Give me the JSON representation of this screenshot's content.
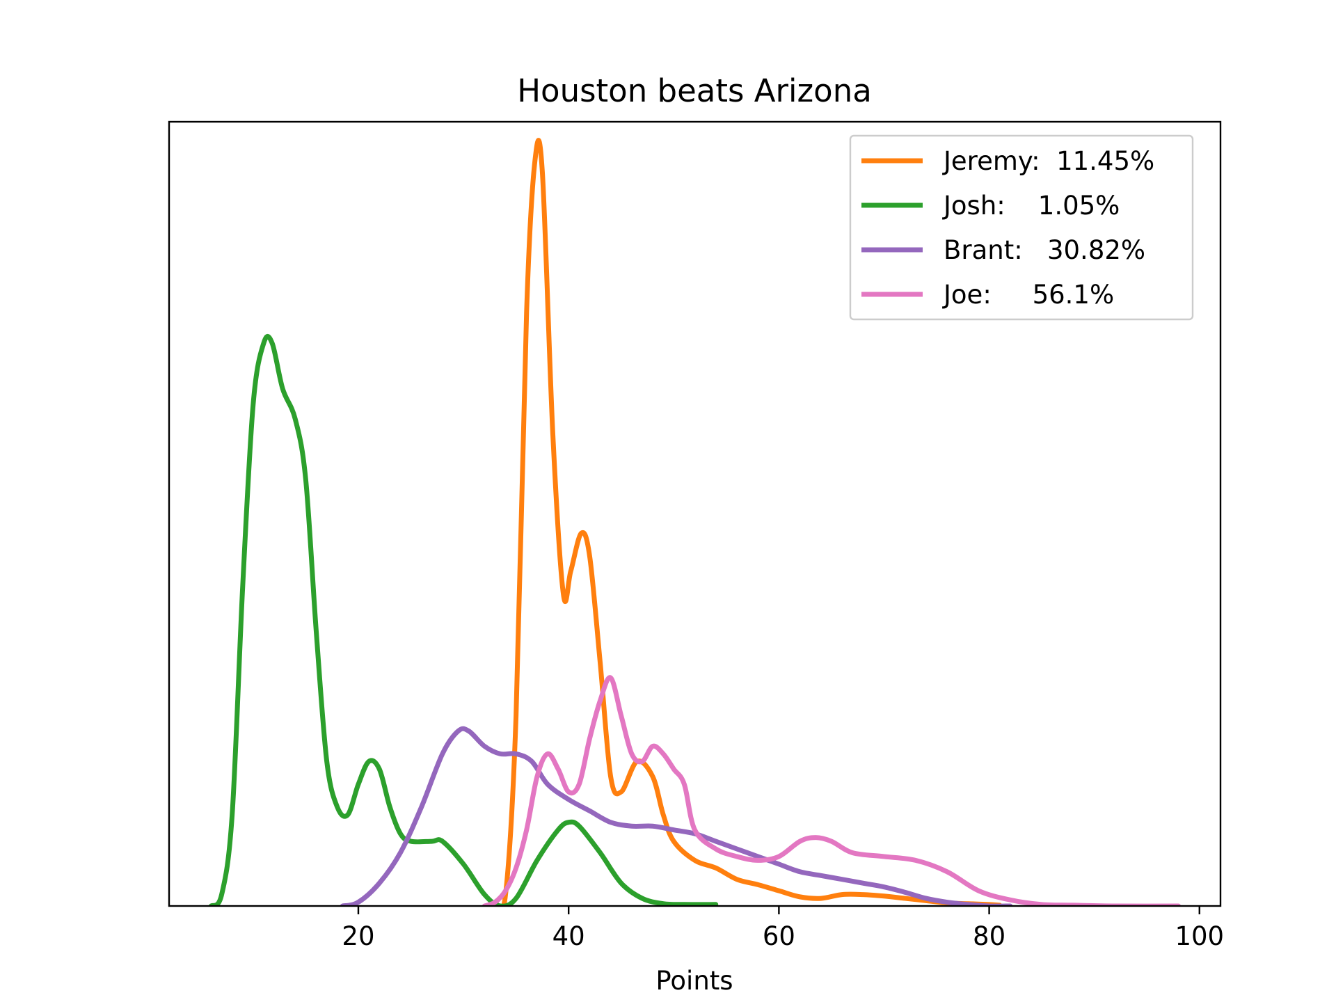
{
  "chart_data": {
    "type": "line",
    "title": "Houston beats Arizona",
    "xlabel": "Points",
    "ylabel": "",
    "xlim": [
      2,
      102
    ],
    "ylim": [
      0,
      1
    ],
    "xticks": [
      20,
      40,
      60,
      80,
      100
    ],
    "yticks_visible": false,
    "grid": false,
    "legend_position": "top-right",
    "series": [
      {
        "name": "Jeremy:  11.45%",
        "color": "#ff7f0e",
        "points": [
          [
            33,
            0.005
          ],
          [
            34,
            0.015
          ],
          [
            35,
            0.25
          ],
          [
            36,
            0.78
          ],
          [
            36.8,
            0.98
          ],
          [
            37.5,
            0.965
          ],
          [
            38.5,
            0.62
          ],
          [
            39.5,
            0.41
          ],
          [
            40.2,
            0.44
          ],
          [
            41.2,
            0.49
          ],
          [
            42,
            0.46
          ],
          [
            43,
            0.32
          ],
          [
            44,
            0.17
          ],
          [
            45,
            0.15
          ],
          [
            46.5,
            0.19
          ],
          [
            48,
            0.17
          ],
          [
            49,
            0.12
          ],
          [
            50,
            0.085
          ],
          [
            52,
            0.06
          ],
          [
            54,
            0.05
          ],
          [
            56,
            0.035
          ],
          [
            58,
            0.028
          ],
          [
            60,
            0.02
          ],
          [
            62,
            0.012
          ],
          [
            64,
            0.01
          ],
          [
            66,
            0.015
          ],
          [
            68,
            0.015
          ],
          [
            70,
            0.013
          ],
          [
            72,
            0.01
          ],
          [
            74,
            0.007
          ],
          [
            76,
            0.004
          ],
          [
            78,
            0.003
          ],
          [
            80,
            0.002
          ],
          [
            81,
            0.001
          ]
        ]
      },
      {
        "name": "Josh:    1.05%",
        "color": "#2ca02c",
        "points": [
          [
            6,
            0.0
          ],
          [
            7,
            0.015
          ],
          [
            8,
            0.12
          ],
          [
            9,
            0.42
          ],
          [
            10,
            0.66
          ],
          [
            11,
            0.74
          ],
          [
            11.8,
            0.74
          ],
          [
            12.8,
            0.68
          ],
          [
            14,
            0.64
          ],
          [
            15,
            0.56
          ],
          [
            16,
            0.36
          ],
          [
            17,
            0.19
          ],
          [
            18,
            0.13
          ],
          [
            19,
            0.12
          ],
          [
            20,
            0.16
          ],
          [
            21,
            0.19
          ],
          [
            22,
            0.18
          ],
          [
            23,
            0.13
          ],
          [
            24,
            0.095
          ],
          [
            25,
            0.085
          ],
          [
            27,
            0.085
          ],
          [
            28,
            0.085
          ],
          [
            30,
            0.055
          ],
          [
            32,
            0.015
          ],
          [
            33.5,
            0.0
          ],
          [
            35,
            0.01
          ],
          [
            37,
            0.06
          ],
          [
            39,
            0.1
          ],
          [
            40,
            0.11
          ],
          [
            41,
            0.105
          ],
          [
            43,
            0.07
          ],
          [
            45,
            0.03
          ],
          [
            47,
            0.01
          ],
          [
            49,
            0.003
          ],
          [
            51,
            0.002
          ],
          [
            54,
            0.002
          ]
        ]
      },
      {
        "name": "Brant:   30.82%",
        "color": "#9467bd",
        "points": [
          [
            18.5,
            0.0
          ],
          [
            20,
            0.005
          ],
          [
            22,
            0.03
          ],
          [
            24,
            0.07
          ],
          [
            26,
            0.13
          ],
          [
            28,
            0.2
          ],
          [
            29.5,
            0.23
          ],
          [
            30.5,
            0.23
          ],
          [
            32,
            0.21
          ],
          [
            33.5,
            0.2
          ],
          [
            35,
            0.2
          ],
          [
            36.5,
            0.19
          ],
          [
            38,
            0.16
          ],
          [
            40,
            0.14
          ],
          [
            42,
            0.125
          ],
          [
            44,
            0.11
          ],
          [
            46,
            0.105
          ],
          [
            48,
            0.105
          ],
          [
            50,
            0.1
          ],
          [
            52,
            0.095
          ],
          [
            54,
            0.085
          ],
          [
            56,
            0.075
          ],
          [
            58,
            0.065
          ],
          [
            60,
            0.055
          ],
          [
            62,
            0.045
          ],
          [
            64,
            0.04
          ],
          [
            66,
            0.035
          ],
          [
            68,
            0.03
          ],
          [
            70,
            0.025
          ],
          [
            72,
            0.018
          ],
          [
            74,
            0.01
          ],
          [
            76,
            0.005
          ],
          [
            78,
            0.002
          ],
          [
            80,
            0.0
          ],
          [
            82,
            0.0
          ]
        ]
      },
      {
        "name": "Joe:     56.1%",
        "color": "#e377c2",
        "points": [
          [
            32,
            0.0
          ],
          [
            33,
            0.005
          ],
          [
            34,
            0.02
          ],
          [
            35,
            0.05
          ],
          [
            36,
            0.1
          ],
          [
            37,
            0.17
          ],
          [
            38,
            0.2
          ],
          [
            39,
            0.18
          ],
          [
            40,
            0.15
          ],
          [
            41,
            0.16
          ],
          [
            42,
            0.22
          ],
          [
            43,
            0.27
          ],
          [
            44,
            0.3
          ],
          [
            45,
            0.25
          ],
          [
            46,
            0.2
          ],
          [
            47,
            0.19
          ],
          [
            48,
            0.21
          ],
          [
            49,
            0.2
          ],
          [
            50,
            0.18
          ],
          [
            51,
            0.16
          ],
          [
            52,
            0.1
          ],
          [
            54,
            0.075
          ],
          [
            56,
            0.065
          ],
          [
            58,
            0.06
          ],
          [
            60,
            0.065
          ],
          [
            62,
            0.085
          ],
          [
            63.5,
            0.09
          ],
          [
            65,
            0.085
          ],
          [
            67,
            0.07
          ],
          [
            70,
            0.065
          ],
          [
            73,
            0.06
          ],
          [
            76,
            0.045
          ],
          [
            79,
            0.02
          ],
          [
            82,
            0.008
          ],
          [
            85,
            0.002
          ],
          [
            88,
            0.001
          ],
          [
            92,
            0.0
          ],
          [
            98,
            0.0
          ]
        ]
      }
    ]
  }
}
